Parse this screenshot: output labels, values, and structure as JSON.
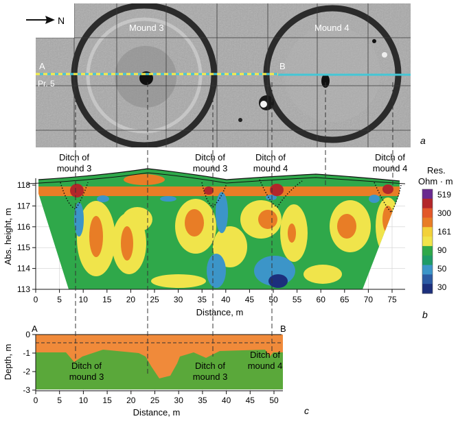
{
  "panel_a": {
    "north_label": "N",
    "mounds": [
      "Mound 3",
      "Mound 4"
    ],
    "point_a": "A",
    "point_b": "B",
    "profile": "Pr. 5",
    "letter": "a"
  },
  "panel_b": {
    "letter": "b",
    "ylabel": "Abs. height, m",
    "xlabel": "Distance, m",
    "legend_title": [
      "Res.",
      "Ohm · m"
    ],
    "legend_values": [
      "519",
      "300",
      "161",
      "90",
      "50",
      "30"
    ],
    "legend_colors": [
      "#6a2a8f",
      "#b3272a",
      "#e2582a",
      "#e87d26",
      "#f2d13a",
      "#f0e44b",
      "#2fa84a",
      "#1f9b67",
      "#3c95c8",
      "#2c5ba3",
      "#1c2f7c"
    ],
    "ditch_labels": [
      [
        "Ditch of",
        "mound 3"
      ],
      [
        "Ditch of",
        "mound 3"
      ],
      [
        "Ditch of",
        "mound 4"
      ],
      [
        "Ditch of",
        "mound 4"
      ]
    ],
    "x_ticks": [
      "0",
      "5",
      "10",
      "15",
      "20",
      "25",
      "30",
      "35",
      "40",
      "45",
      "50",
      "55",
      "60",
      "65",
      "70",
      "75"
    ],
    "y_ticks": [
      "118",
      "117",
      "116",
      "115",
      "114",
      "113"
    ]
  },
  "panel_c": {
    "letter": "c",
    "point_a": "A",
    "point_b": "B",
    "ylabel": "Depth, m",
    "xlabel": "Distance, m",
    "ditch_labels": [
      [
        "Ditch of",
        "mound 3"
      ],
      [
        "Ditch of",
        "mound 3"
      ],
      [
        "Ditch of",
        "mound 4"
      ]
    ],
    "x_ticks": [
      "0",
      "5",
      "10",
      "15",
      "20",
      "25",
      "30",
      "35",
      "40",
      "45",
      "50"
    ],
    "y_ticks": [
      "0",
      "-1",
      "-2",
      "-3"
    ]
  }
}
